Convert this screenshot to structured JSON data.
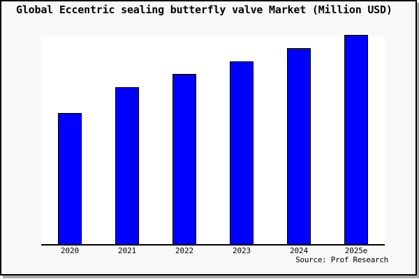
{
  "title": "Global Eccentric sealing butterfly valve Market (Million USD)",
  "source_note": "Source: Prof Research",
  "colors": {
    "bar_fill": "#0000fe",
    "bar_border": "#000000",
    "background": "#f8f8f8",
    "plot_background": "#ffffff",
    "axis": "#000000",
    "frame_border": "#000000",
    "frame_shadow": "#a8a8a8"
  },
  "chart_data": {
    "type": "bar",
    "title": "Global Eccentric sealing butterfly valve Market (Million USD)",
    "categories": [
      "2020",
      "2021",
      "2022",
      "2023",
      "2024",
      "2025e"
    ],
    "values": [
      188,
      225,
      244,
      262,
      281,
      300
    ],
    "values_note": "y-axis has no tick labels; values are relative bar heights read from the plot (px), baseline 0",
    "xlabel": "",
    "ylabel": "",
    "ylim": [
      0,
      300
    ],
    "grid": false,
    "legend": false,
    "y_axis_labeled": false,
    "annotation": "Source: Prof Research"
  }
}
